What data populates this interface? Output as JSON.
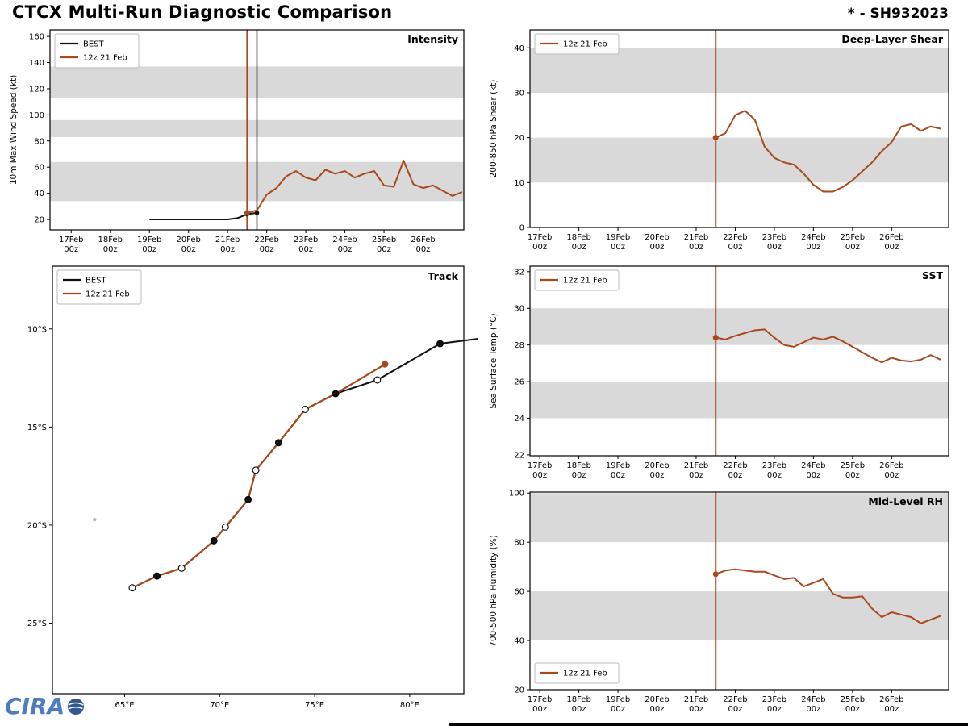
{
  "header": {
    "title": "CTCX Multi-Run Diagnostic Comparison",
    "storm_id": "* - SH932023"
  },
  "logo": {
    "text": "CIRA"
  },
  "colors": {
    "best": "#111111",
    "run": "#a8491d",
    "band": "#d9d9d9",
    "open_dot": "#ffffff",
    "island": "#b9b9b9",
    "legend_border": "#bbbbbb"
  },
  "legend_labels": {
    "best": "BEST",
    "run": "12z 21 Feb"
  },
  "time_axis": {
    "ticks": [
      {
        "hour": 0,
        "day": "17Feb",
        "time": "00z"
      },
      {
        "hour": 24,
        "day": "18Feb",
        "time": "00z"
      },
      {
        "hour": 48,
        "day": "19Feb",
        "time": "00z"
      },
      {
        "hour": 72,
        "day": "20Feb",
        "time": "00z"
      },
      {
        "hour": 96,
        "day": "21Feb",
        "time": "00z"
      },
      {
        "hour": 120,
        "day": "22Feb",
        "time": "00z"
      },
      {
        "hour": 144,
        "day": "23Feb",
        "time": "00z"
      },
      {
        "hour": 168,
        "day": "24Feb",
        "time": "00z"
      },
      {
        "hour": 192,
        "day": "25Feb",
        "time": "00z"
      },
      {
        "hour": 216,
        "day": "26Feb",
        "time": "00z"
      }
    ]
  },
  "init_markers": {
    "run_hour": 108,
    "best_hour": 114
  },
  "chart_data": [
    {
      "id": "intensity",
      "type": "line",
      "title": "Intensity",
      "ylabel": "10m Max Wind Speed (kt)",
      "ylim": [
        12,
        165
      ],
      "yticks": [
        20,
        40,
        60,
        80,
        100,
        120,
        140,
        160
      ],
      "xlim_hours": [
        -13,
        241
      ],
      "bands": [
        [
          34,
          64
        ],
        [
          83,
          96
        ],
        [
          113,
          137
        ]
      ],
      "show_best_vline": true,
      "legend": {
        "position": "top-left",
        "entries": [
          "best",
          "run"
        ]
      },
      "series": [
        {
          "key": "best",
          "name": "BEST",
          "x_hours": [
            48,
            60,
            72,
            84,
            96,
            102,
            108,
            114
          ],
          "values": [
            20,
            20,
            20,
            20,
            20,
            21,
            24,
            25
          ],
          "end_dots": 2
        },
        {
          "key": "run",
          "name": "12z 21 Feb",
          "start_hour": 108,
          "step_hours": 6,
          "values": [
            25,
            27,
            39,
            44,
            53,
            57,
            52,
            50,
            58,
            55,
            57,
            52,
            55,
            57,
            46,
            45,
            65,
            47,
            44,
            46,
            42,
            38,
            41
          ],
          "init_dot": true
        }
      ]
    },
    {
      "id": "shear",
      "type": "line",
      "title": "Deep-Layer Shear",
      "ylabel": "200-850 hPa Shear (kt)",
      "ylim": [
        0,
        44
      ],
      "yticks": [
        0,
        10,
        20,
        30,
        40
      ],
      "xlim_hours": [
        -6,
        251
      ],
      "bands": [
        [
          10,
          20
        ],
        [
          30,
          40
        ]
      ],
      "legend": {
        "position": "top-left",
        "entries": [
          "run"
        ]
      },
      "series": [
        {
          "key": "run",
          "name": "12z 21 Feb",
          "start_hour": 108,
          "step_hours": 6,
          "values": [
            20,
            21,
            25,
            26,
            24,
            18,
            15.5,
            14.5,
            14,
            12,
            9.5,
            8,
            8,
            9,
            10.5,
            12.5,
            14.5,
            17,
            19,
            22.5,
            23,
            21.5,
            22.5,
            22
          ],
          "init_dot": true
        }
      ]
    },
    {
      "id": "sst",
      "type": "line",
      "title": "SST",
      "ylabel": "Sea Surface Temp (°C)",
      "ylim": [
        21.95,
        32.3
      ],
      "yticks": [
        22,
        24,
        26,
        28,
        30,
        32
      ],
      "xlim_hours": [
        -6,
        251
      ],
      "bands": [
        [
          24,
          26
        ],
        [
          28,
          30
        ]
      ],
      "legend": {
        "position": "top-left",
        "entries": [
          "run"
        ]
      },
      "series": [
        {
          "key": "run",
          "name": "12z 21 Feb",
          "start_hour": 108,
          "step_hours": 6,
          "values": [
            28.4,
            28.3,
            28.5,
            28.65,
            28.8,
            28.85,
            28.4,
            28.0,
            27.9,
            28.15,
            28.4,
            28.3,
            28.45,
            28.2,
            27.9,
            27.6,
            27.3,
            27.05,
            27.3,
            27.15,
            27.1,
            27.2,
            27.45,
            27.2
          ],
          "init_dot": true
        }
      ]
    },
    {
      "id": "rh",
      "type": "line",
      "title": "Mid-Level RH",
      "ylabel": "700-500 hPa Humidity (%)",
      "ylim": [
        20,
        100.4
      ],
      "yticks": [
        20,
        40,
        60,
        80,
        100
      ],
      "xlim_hours": [
        -6,
        251
      ],
      "bands": [
        [
          40,
          60
        ],
        [
          80,
          100
        ]
      ],
      "legend": {
        "position": "bottom-left",
        "entries": [
          "run"
        ]
      },
      "series": [
        {
          "key": "run",
          "name": "12z 21 Feb",
          "start_hour": 108,
          "step_hours": 6,
          "values": [
            67,
            68.5,
            69,
            68.5,
            68,
            68,
            66.5,
            65,
            65.5,
            62,
            63.5,
            65,
            59,
            57.5,
            57.5,
            58,
            53,
            49.5,
            51.5,
            50.5,
            49.5,
            47,
            48.5,
            50
          ],
          "init_dot": true
        }
      ]
    }
  ],
  "track": {
    "type": "track-map",
    "title": "Track",
    "xlim_lon": [
      61.2,
      82.85
    ],
    "ylim_lat": [
      6.8,
      28.6
    ],
    "xticks": [
      {
        "lon": 65,
        "label": "65°E"
      },
      {
        "lon": 70,
        "label": "70°E"
      },
      {
        "lon": 75,
        "label": "75°E"
      },
      {
        "lon": 80,
        "label": "80°E"
      }
    ],
    "yticks": [
      {
        "lat": 10,
        "label": "10°S"
      },
      {
        "lat": 15,
        "label": "15°S"
      },
      {
        "lat": 20,
        "label": "20°S"
      },
      {
        "lat": 25,
        "label": "25°S"
      }
    ],
    "legend": {
      "position": "top-left",
      "entries": [
        "best",
        "run"
      ]
    },
    "best_track": {
      "points": [
        [
          65.4,
          23.2
        ],
        [
          66.7,
          22.6
        ],
        [
          68.0,
          22.2
        ],
        [
          69.7,
          20.8
        ],
        [
          70.3,
          20.1
        ],
        [
          71.5,
          18.7
        ],
        [
          71.9,
          17.2
        ],
        [
          73.1,
          15.8
        ],
        [
          74.5,
          14.1
        ],
        [
          76.1,
          13.3
        ],
        [
          78.3,
          12.6
        ],
        [
          81.6,
          10.75
        ],
        [
          83.6,
          10.5
        ]
      ],
      "dot_styles": [
        "open",
        "filled",
        "open",
        "filled",
        "open",
        "filled",
        "open",
        "filled",
        "open",
        "filled",
        "open",
        "filled",
        "none"
      ]
    },
    "forecast_track": {
      "points": [
        [
          65.4,
          23.2
        ],
        [
          66.7,
          22.6
        ],
        [
          68.0,
          22.2
        ],
        [
          69.7,
          20.8
        ],
        [
          70.3,
          20.1
        ],
        [
          71.5,
          18.7
        ],
        [
          71.9,
          17.2
        ],
        [
          73.1,
          15.8
        ],
        [
          74.5,
          14.1
        ],
        [
          76.1,
          13.3
        ],
        [
          78.7,
          11.8
        ]
      ],
      "end_dot": true
    },
    "island": {
      "lon": 63.42,
      "lat": 19.72
    }
  }
}
